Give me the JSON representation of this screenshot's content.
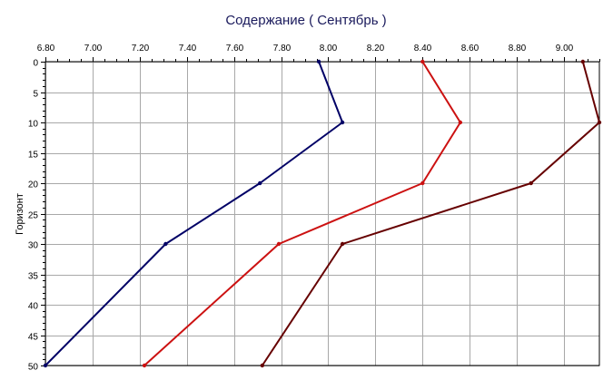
{
  "chart_data": {
    "type": "line",
    "title": "Содержание    ( Сентябрь )",
    "ylabel": "Горизонт",
    "xlabel": "",
    "x_axis_position": "top",
    "y_inverted": true,
    "grid": true,
    "xlim": [
      6.8,
      9.15
    ],
    "ylim": [
      0,
      50
    ],
    "x_ticks": [
      "6.80",
      "7.00",
      "7.20",
      "7.40",
      "7.60",
      "7.80",
      "8.00",
      "8.20",
      "8.40",
      "8.60",
      "8.80",
      "9.00"
    ],
    "x_tick_values": [
      6.8,
      7.0,
      7.2,
      7.4,
      7.6,
      7.8,
      8.0,
      8.2,
      8.4,
      8.6,
      8.8,
      9.0
    ],
    "y_ticks": [
      "0",
      "5",
      "10",
      "15",
      "20",
      "25",
      "30",
      "35",
      "40",
      "45",
      "50"
    ],
    "y_tick_values": [
      0,
      5,
      10,
      15,
      20,
      25,
      30,
      35,
      40,
      45,
      50
    ],
    "series": [
      {
        "color": "#000066",
        "points": [
          [
            7.96,
            0
          ],
          [
            8.06,
            10
          ],
          [
            7.71,
            20
          ],
          [
            7.31,
            30
          ],
          [
            6.8,
            50
          ]
        ]
      },
      {
        "color": "#cc1111",
        "points": [
          [
            8.4,
            0
          ],
          [
            8.56,
            10
          ],
          [
            8.4,
            20
          ],
          [
            7.79,
            30
          ],
          [
            7.22,
            50
          ]
        ]
      },
      {
        "color": "#660000",
        "points": [
          [
            9.08,
            0
          ],
          [
            9.15,
            10
          ],
          [
            8.86,
            20
          ],
          [
            8.06,
            30
          ],
          [
            7.72,
            50
          ]
        ]
      }
    ]
  }
}
